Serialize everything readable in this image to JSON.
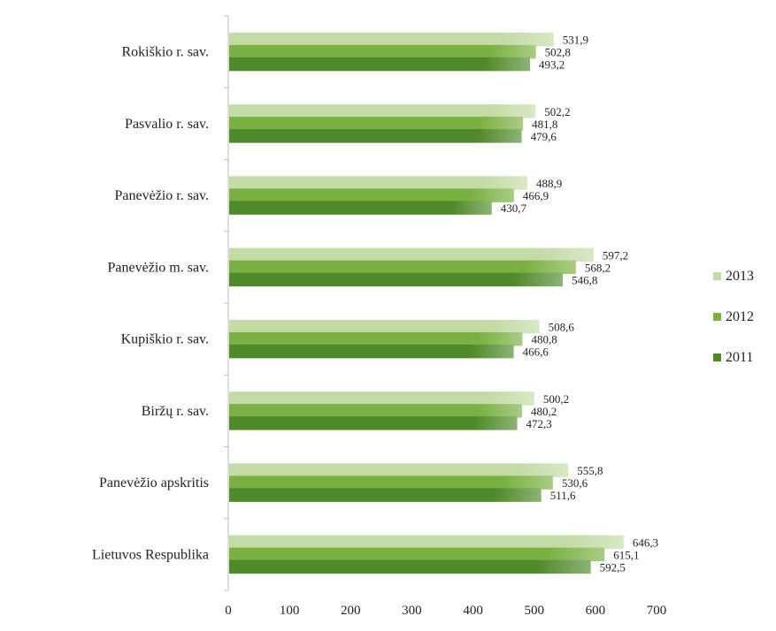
{
  "chart_data": {
    "type": "bar",
    "orientation": "horizontal",
    "title": "",
    "xlabel": "",
    "ylabel": "",
    "xlim": [
      0,
      700
    ],
    "xticks": [
      0,
      100,
      200,
      300,
      400,
      500,
      600,
      700
    ],
    "grid": false,
    "legend_position": "right",
    "categories": [
      "Rokiškio r. sav.",
      "Pasvalio r. sav.",
      "Panevėžio r. sav.",
      "Panevėžio m. sav.",
      "Kupiškio r. sav.",
      "Biržų r. sav.",
      "Panevėžio apskritis",
      "Lietuvos Respublika"
    ],
    "series": [
      {
        "name": "2013",
        "color": "#c3dba5",
        "values": [
          531.9,
          502.2,
          488.9,
          597.2,
          508.6,
          500.2,
          555.8,
          646.3
        ],
        "labels": [
          "531,9",
          "502,2",
          "488,9",
          "597,2",
          "508,6",
          "500,2",
          "555,8",
          "646,3"
        ]
      },
      {
        "name": "2012",
        "color": "#7bb043",
        "values": [
          502.8,
          481.8,
          466.9,
          568.2,
          480.8,
          480.2,
          530.6,
          615.1
        ],
        "labels": [
          "502,8",
          "481,8",
          "466,9",
          "568,2",
          "480,8",
          "480,2",
          "530,6",
          "615,1"
        ]
      },
      {
        "name": "2011",
        "color": "#4f8a2a",
        "values": [
          493.2,
          479.6,
          430.7,
          546.8,
          466.6,
          472.3,
          511.6,
          592.5
        ],
        "labels": [
          "493,2",
          "479,6",
          "430,7",
          "546,8",
          "466,6",
          "472,3",
          "511,6",
          "592,5"
        ]
      }
    ],
    "legend_order": [
      "2013",
      "2012",
      "2011"
    ]
  }
}
